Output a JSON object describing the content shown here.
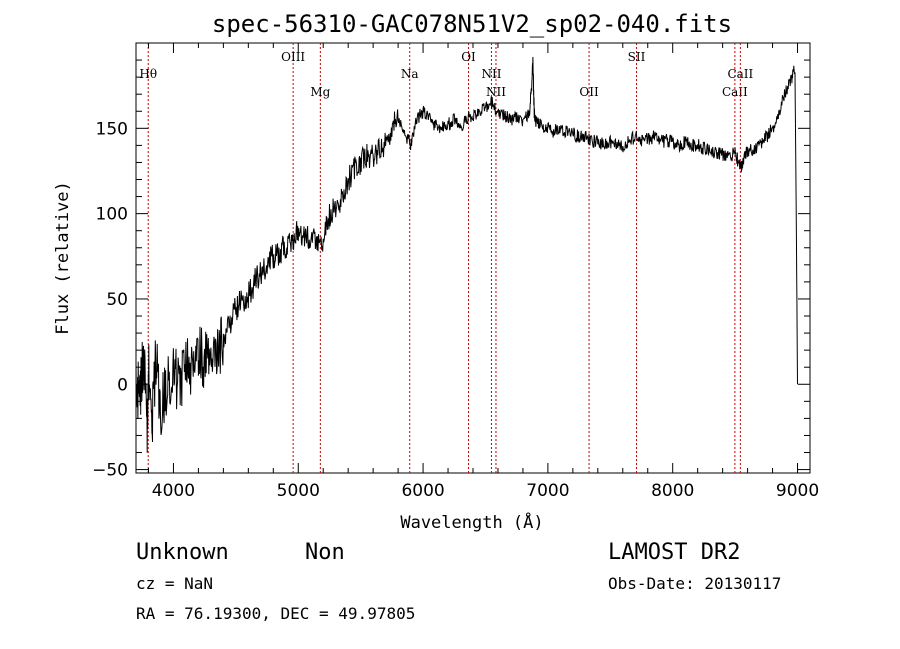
{
  "chart_data": {
    "type": "line",
    "title": "spec-56310-GAC078N51V2_sp02-040.fits",
    "xlabel": "Wavelength (Å)",
    "ylabel": "Flux (relative)",
    "xlim": [
      3700,
      9100
    ],
    "ylim": [
      -52,
      200
    ],
    "xticks": [
      4000,
      5000,
      6000,
      7000,
      8000,
      9000
    ],
    "yticks": [
      -50,
      0,
      50,
      100,
      150
    ],
    "grid": false,
    "series": [
      {
        "values": [
          [
            3700,
            5
          ],
          [
            3730,
            -10
          ],
          [
            3760,
            20
          ],
          [
            3790,
            -25
          ],
          [
            3800,
            10
          ],
          [
            3830,
            -20
          ],
          [
            3860,
            15
          ],
          [
            3900,
            -15
          ],
          [
            3950,
            0
          ],
          [
            4000,
            10
          ],
          [
            4050,
            -5
          ],
          [
            4100,
            15
          ],
          [
            4150,
            10
          ],
          [
            4200,
            20
          ],
          [
            4250,
            15
          ],
          [
            4300,
            25
          ],
          [
            4350,
            20
          ],
          [
            4400,
            25
          ],
          [
            4450,
            35
          ],
          [
            4500,
            45
          ],
          [
            4550,
            48
          ],
          [
            4600,
            52
          ],
          [
            4650,
            60
          ],
          [
            4700,
            65
          ],
          [
            4750,
            70
          ],
          [
            4800,
            75
          ],
          [
            4850,
            78
          ],
          [
            4900,
            80
          ],
          [
            4950,
            85
          ],
          [
            5000,
            90
          ],
          [
            5050,
            85
          ],
          [
            5100,
            88
          ],
          [
            5150,
            80
          ],
          [
            5200,
            85
          ],
          [
            5250,
            100
          ],
          [
            5300,
            105
          ],
          [
            5350,
            110
          ],
          [
            5400,
            120
          ],
          [
            5450,
            125
          ],
          [
            5500,
            130
          ],
          [
            5550,
            133
          ],
          [
            5600,
            135
          ],
          [
            5650,
            138
          ],
          [
            5700,
            140
          ],
          [
            5750,
            150
          ],
          [
            5800,
            155
          ],
          [
            5850,
            148
          ],
          [
            5900,
            140
          ],
          [
            5950,
            155
          ],
          [
            6000,
            160
          ],
          [
            6050,
            155
          ],
          [
            6100,
            152
          ],
          [
            6150,
            150
          ],
          [
            6200,
            152
          ],
          [
            6250,
            155
          ],
          [
            6300,
            150
          ],
          [
            6350,
            155
          ],
          [
            6400,
            158
          ],
          [
            6450,
            160
          ],
          [
            6500,
            162
          ],
          [
            6550,
            165
          ],
          [
            6600,
            160
          ],
          [
            6650,
            158
          ],
          [
            6700,
            155
          ],
          [
            6750,
            157
          ],
          [
            6800,
            155
          ],
          [
            6850,
            158
          ],
          [
            6870,
            175
          ],
          [
            6880,
            190
          ],
          [
            6890,
            160
          ],
          [
            6900,
            155
          ],
          [
            6950,
            152
          ],
          [
            7000,
            150
          ],
          [
            7050,
            148
          ],
          [
            7100,
            150
          ],
          [
            7150,
            148
          ],
          [
            7200,
            147
          ],
          [
            7250,
            145
          ],
          [
            7300,
            145
          ],
          [
            7350,
            143
          ],
          [
            7400,
            142
          ],
          [
            7450,
            140
          ],
          [
            7500,
            142
          ],
          [
            7550,
            140
          ],
          [
            7600,
            140
          ],
          [
            7650,
            143
          ],
          [
            7700,
            145
          ],
          [
            7750,
            142
          ],
          [
            7800,
            144
          ],
          [
            7850,
            145
          ],
          [
            7900,
            142
          ],
          [
            7950,
            143
          ],
          [
            8000,
            142
          ],
          [
            8050,
            140
          ],
          [
            8100,
            142
          ],
          [
            8150,
            140
          ],
          [
            8200,
            140
          ],
          [
            8250,
            138
          ],
          [
            8300,
            137
          ],
          [
            8350,
            136
          ],
          [
            8400,
            135
          ],
          [
            8450,
            134
          ],
          [
            8500,
            135
          ],
          [
            8530,
            130
          ],
          [
            8550,
            128
          ],
          [
            8570,
            133
          ],
          [
            8600,
            136
          ],
          [
            8650,
            138
          ],
          [
            8700,
            140
          ],
          [
            8750,
            145
          ],
          [
            8800,
            150
          ],
          [
            8850,
            160
          ],
          [
            8900,
            170
          ],
          [
            8950,
            178
          ],
          [
            8980,
            185
          ],
          [
            9000,
            0
          ]
        ]
      }
    ],
    "lines": [
      {
        "label": "Hθ",
        "wavelength": 3798,
        "label_row": "upper"
      },
      {
        "label": "OIII",
        "wavelength": 4959,
        "label_row": "top"
      },
      {
        "label": "Mg",
        "wavelength": 5177,
        "label_row": "lower"
      },
      {
        "label": "Na",
        "wavelength": 5893,
        "label_row": "upper"
      },
      {
        "label": "OI",
        "wavelength": 6364,
        "label_row": "top"
      },
      {
        "label": "NII",
        "wavelength": 6548,
        "label_row": "upper"
      },
      {
        "label": "NII",
        "wavelength": 6584,
        "label_row": "lower"
      },
      {
        "label": "OII",
        "wavelength": 7330,
        "label_row": "lower"
      },
      {
        "label": "SII",
        "wavelength": 7710,
        "label_row": "top"
      },
      {
        "label": "CaII",
        "wavelength": 8498,
        "label_row": "lower"
      },
      {
        "label": "CaII",
        "wavelength": 8542,
        "label_row": "upper"
      }
    ],
    "colors": {
      "line_marker": "#cc0000",
      "spectrum": "#000000"
    }
  },
  "footer": {
    "object_class": "Unknown",
    "subclass": "Non",
    "survey": "LAMOST DR2",
    "redshift": "cz = NaN",
    "obs_date": "Obs-Date: 20130117",
    "coords": "RA =  76.19300, DEC =  49.97805"
  }
}
